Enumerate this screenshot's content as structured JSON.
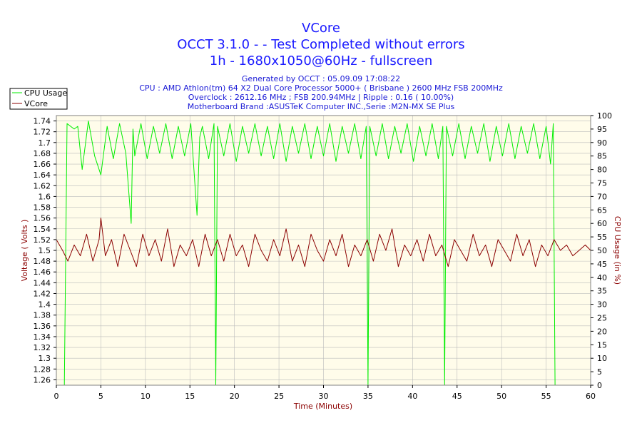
{
  "chart_data": {
    "type": "line",
    "title_lines": [
      "VCore",
      "OCCT 3.1.0 -  - Test Completed without errors",
      "1h - 1680x1050@60Hz - fullscreen"
    ],
    "subtitle_lines": [
      "Generated by OCCT : 05.09.09 17:08:22",
      "CPU : AMD Athlon(tm) 64 X2 Dual Core Processor 5000+ ( Brisbane ) 2600 MHz FSB 200MHz",
      "Overclock : 2612.16 MHz ; FSB 200.94MHz | Ripple : 0.16 ( 10.00%)",
      "Motherboard Brand :ASUSTeK Computer INC.,Serie :M2N-MX SE Plus"
    ],
    "xlabel": "Time (Minutes)",
    "ylabel_left": "Voltage ( Volts )",
    "ylabel_right": "CPU Usage (in %)",
    "xlim": [
      0,
      60
    ],
    "ylim_left": [
      1.25,
      1.75
    ],
    "ylim_right": [
      0,
      100
    ],
    "x_ticks": [
      "0",
      "5",
      "10",
      "15",
      "20",
      "25",
      "30",
      "35",
      "40",
      "45",
      "50",
      "55",
      "60"
    ],
    "y_left_ticks": [
      "1.26",
      "1.28",
      "1.3",
      "1.32",
      "1.34",
      "1.36",
      "1.38",
      "1.4",
      "1.42",
      "1.44",
      "1.46",
      "1.48",
      "1.5",
      "1.52",
      "1.54",
      "1.56",
      "1.58",
      "1.6",
      "1.62",
      "1.64",
      "1.66",
      "1.68",
      "1.7",
      "1.72",
      "1.74"
    ],
    "y_right_ticks": [
      "0",
      "5",
      "10",
      "15",
      "20",
      "25",
      "30",
      "35",
      "40",
      "45",
      "50",
      "55",
      "60",
      "65",
      "70",
      "75",
      "80",
      "85",
      "90",
      "95",
      "100"
    ],
    "legend_position": "top-left",
    "grid": true,
    "colors": {
      "cpu_usage": "#00ee00",
      "vcore": "#8b0000",
      "plot_bg": "#fffcea",
      "grid": "#bbbbbb",
      "title": "#1a1aff",
      "subtitle": "#1a1ad6"
    },
    "series": [
      {
        "name": "CPU Usage",
        "axis": "right",
        "x": [
          0.9,
          1.2,
          2.0,
          2.4,
          2.9,
          3.6,
          4.3,
          5.0,
          5.7,
          6.4,
          7.1,
          7.8,
          8.4,
          8.6,
          8.8,
          9.5,
          10.2,
          10.9,
          11.6,
          12.3,
          13.0,
          13.7,
          14.4,
          15.1,
          15.8,
          16.1,
          16.4,
          17.1,
          17.7,
          17.9,
          18.1,
          18.8,
          19.5,
          20.2,
          20.9,
          21.6,
          22.3,
          23.0,
          23.7,
          24.4,
          25.1,
          25.8,
          26.5,
          27.2,
          27.9,
          28.6,
          29.3,
          30.0,
          30.7,
          31.4,
          32.1,
          32.8,
          33.5,
          34.2,
          34.8,
          35.0,
          35.2,
          35.9,
          36.6,
          37.3,
          38.0,
          38.7,
          39.4,
          40.1,
          40.8,
          41.5,
          42.2,
          42.9,
          43.4,
          43.6,
          43.8,
          44.5,
          45.2,
          45.9,
          46.6,
          47.3,
          48.0,
          48.7,
          49.4,
          50.1,
          50.8,
          51.5,
          52.2,
          52.9,
          53.6,
          54.3,
          55.0,
          55.5,
          55.8,
          56.0,
          56.2
        ],
        "values": [
          0,
          97,
          95,
          96,
          80,
          98,
          85,
          78,
          96,
          84,
          97,
          86,
          60,
          95,
          85,
          97,
          84,
          96,
          86,
          97,
          84,
          96,
          85,
          97,
          63,
          92,
          96,
          84,
          97,
          0,
          96,
          85,
          97,
          83,
          96,
          86,
          97,
          85,
          96,
          84,
          97,
          83,
          96,
          86,
          97,
          84,
          96,
          85,
          97,
          83,
          96,
          86,
          97,
          84,
          96,
          0,
          96,
          85,
          97,
          84,
          96,
          86,
          97,
          83,
          96,
          85,
          97,
          84,
          96,
          0,
          96,
          85,
          97,
          84,
          96,
          86,
          97,
          83,
          96,
          85,
          97,
          84,
          96,
          86,
          97,
          84,
          96,
          82,
          97,
          0,
          0
        ]
      },
      {
        "name": "VCore",
        "axis": "left",
        "x": [
          0,
          0.7,
          1.3,
          2.0,
          2.7,
          3.4,
          4.1,
          4.8,
          5.0,
          5.5,
          6.2,
          6.9,
          7.6,
          8.3,
          9.0,
          9.7,
          10.4,
          11.1,
          11.8,
          12.5,
          13.2,
          13.9,
          14.6,
          15.3,
          16.0,
          16.7,
          17.4,
          18.1,
          18.8,
          19.5,
          20.2,
          20.9,
          21.6,
          22.3,
          23.0,
          23.7,
          24.4,
          25.1,
          25.8,
          26.5,
          27.2,
          27.9,
          28.6,
          29.3,
          30.0,
          30.7,
          31.4,
          32.1,
          32.8,
          33.5,
          34.2,
          34.9,
          35.6,
          36.3,
          37.0,
          37.7,
          38.4,
          39.1,
          39.8,
          40.5,
          41.2,
          41.9,
          42.6,
          43.3,
          44.0,
          44.7,
          45.4,
          46.1,
          46.8,
          47.5,
          48.2,
          48.9,
          49.6,
          50.3,
          51.0,
          51.7,
          52.4,
          53.1,
          53.8,
          54.5,
          55.2,
          55.9,
          56.6,
          57.3,
          58.0,
          58.7,
          59.4,
          60.0
        ],
        "values": [
          1.52,
          1.5,
          1.48,
          1.51,
          1.49,
          1.53,
          1.48,
          1.52,
          1.56,
          1.49,
          1.52,
          1.47,
          1.53,
          1.5,
          1.47,
          1.53,
          1.49,
          1.52,
          1.48,
          1.54,
          1.47,
          1.51,
          1.49,
          1.52,
          1.47,
          1.53,
          1.49,
          1.52,
          1.48,
          1.53,
          1.49,
          1.51,
          1.47,
          1.53,
          1.5,
          1.48,
          1.52,
          1.49,
          1.54,
          1.48,
          1.51,
          1.47,
          1.53,
          1.5,
          1.48,
          1.52,
          1.49,
          1.53,
          1.47,
          1.51,
          1.49,
          1.52,
          1.48,
          1.53,
          1.5,
          1.54,
          1.47,
          1.51,
          1.49,
          1.52,
          1.48,
          1.53,
          1.49,
          1.51,
          1.47,
          1.52,
          1.5,
          1.48,
          1.53,
          1.49,
          1.51,
          1.47,
          1.52,
          1.5,
          1.48,
          1.53,
          1.49,
          1.52,
          1.47,
          1.51,
          1.49,
          1.52,
          1.5,
          1.51,
          1.49,
          1.5,
          1.51,
          1.5
        ]
      }
    ]
  }
}
